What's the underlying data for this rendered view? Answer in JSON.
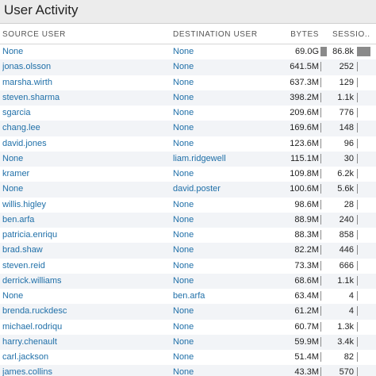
{
  "header": {
    "title": "User Activity"
  },
  "columns": {
    "source_user": "SOURCE USER",
    "destination_user": "DESTINATION USER",
    "bytes": "BYTES",
    "sessions": "SESSIO..."
  },
  "bars": {
    "max_bytes_mb": 69000,
    "max_sessions": 86800
  },
  "rows": [
    {
      "source": "None",
      "destination": "None",
      "bytes": "69.0G",
      "sessions": "86.8k",
      "bytes_value_mb": 69000,
      "sessions_value": 86800
    },
    {
      "source": "jonas.olsson",
      "destination": "None",
      "bytes": "641.5M",
      "sessions": "252",
      "bytes_value_mb": 641.5,
      "sessions_value": 252
    },
    {
      "source": "marsha.wirth",
      "destination": "None",
      "bytes": "637.3M",
      "sessions": "129",
      "bytes_value_mb": 637.3,
      "sessions_value": 129
    },
    {
      "source": "steven.sharma",
      "destination": "None",
      "bytes": "398.2M",
      "sessions": "1.1k",
      "bytes_value_mb": 398.2,
      "sessions_value": 1100
    },
    {
      "source": "sgarcia",
      "destination": "None",
      "bytes": "209.6M",
      "sessions": "776",
      "bytes_value_mb": 209.6,
      "sessions_value": 776
    },
    {
      "source": "chang.lee",
      "destination": "None",
      "bytes": "169.6M",
      "sessions": "148",
      "bytes_value_mb": 169.6,
      "sessions_value": 148
    },
    {
      "source": "david.jones",
      "destination": "None",
      "bytes": "123.6M",
      "sessions": "96",
      "bytes_value_mb": 123.6,
      "sessions_value": 96
    },
    {
      "source": "None",
      "destination": "liam.ridgewell",
      "bytes": "115.1M",
      "sessions": "30",
      "bytes_value_mb": 115.1,
      "sessions_value": 30
    },
    {
      "source": "kramer",
      "destination": "None",
      "bytes": "109.8M",
      "sessions": "6.2k",
      "bytes_value_mb": 109.8,
      "sessions_value": 6200
    },
    {
      "source": "None",
      "destination": "david.poster",
      "bytes": "100.6M",
      "sessions": "5.6k",
      "bytes_value_mb": 100.6,
      "sessions_value": 5600
    },
    {
      "source": "willis.higley",
      "destination": "None",
      "bytes": "98.6M",
      "sessions": "28",
      "bytes_value_mb": 98.6,
      "sessions_value": 28
    },
    {
      "source": "ben.arfa",
      "destination": "None",
      "bytes": "88.9M",
      "sessions": "240",
      "bytes_value_mb": 88.9,
      "sessions_value": 240
    },
    {
      "source": "patricia.enriqu",
      "destination": "None",
      "bytes": "88.3M",
      "sessions": "858",
      "bytes_value_mb": 88.3,
      "sessions_value": 858
    },
    {
      "source": "brad.shaw",
      "destination": "None",
      "bytes": "82.2M",
      "sessions": "446",
      "bytes_value_mb": 82.2,
      "sessions_value": 446
    },
    {
      "source": "steven.reid",
      "destination": "None",
      "bytes": "73.3M",
      "sessions": "666",
      "bytes_value_mb": 73.3,
      "sessions_value": 666
    },
    {
      "source": "derrick.williams",
      "destination": "None",
      "bytes": "68.6M",
      "sessions": "1.1k",
      "bytes_value_mb": 68.6,
      "sessions_value": 1100
    },
    {
      "source": "None",
      "destination": "ben.arfa",
      "bytes": "63.4M",
      "sessions": "4",
      "bytes_value_mb": 63.4,
      "sessions_value": 4
    },
    {
      "source": "brenda.ruckdesc",
      "destination": "None",
      "bytes": "61.2M",
      "sessions": "4",
      "bytes_value_mb": 61.2,
      "sessions_value": 4
    },
    {
      "source": "michael.rodriqu",
      "destination": "None",
      "bytes": "60.7M",
      "sessions": "1.3k",
      "bytes_value_mb": 60.7,
      "sessions_value": 1300
    },
    {
      "source": "harry.chenault",
      "destination": "None",
      "bytes": "59.9M",
      "sessions": "3.4k",
      "bytes_value_mb": 59.9,
      "sessions_value": 3400
    },
    {
      "source": "carl.jackson",
      "destination": "None",
      "bytes": "51.4M",
      "sessions": "82",
      "bytes_value_mb": 51.4,
      "sessions_value": 82
    },
    {
      "source": "james.collins",
      "destination": "None",
      "bytes": "43.3M",
      "sessions": "570",
      "bytes_value_mb": 43.3,
      "sessions_value": 570
    }
  ]
}
